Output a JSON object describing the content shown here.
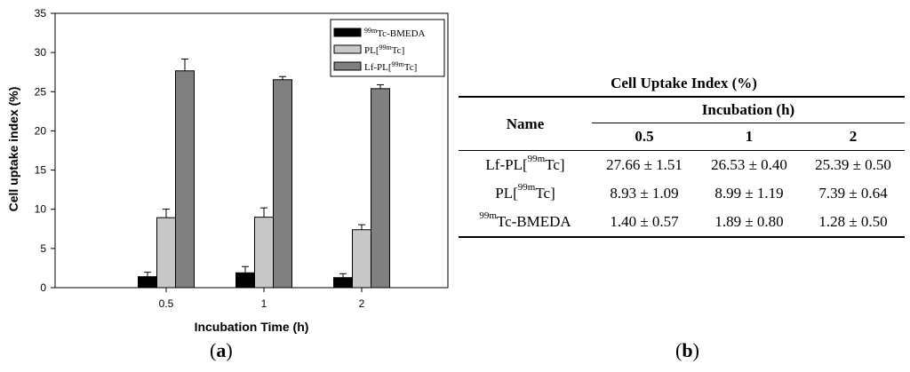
{
  "panel_a_label": "a",
  "panel_b_label": "b",
  "chart_data": {
    "type": "bar",
    "categories": [
      "0.5",
      "1",
      "2"
    ],
    "xlabel": "Incubation Time (h)",
    "ylabel": "Cell uptake index (%)",
    "ylim": [
      0,
      35
    ],
    "yticks": [
      0,
      5,
      10,
      15,
      20,
      25,
      30,
      35
    ],
    "grid": false,
    "legend_position": "top-right",
    "series": [
      {
        "name": "99mTc-BMEDA",
        "legend_sup": "99m",
        "legend_main": "Tc-BMEDA",
        "color": "#000000",
        "values": [
          1.4,
          1.89,
          1.28
        ],
        "errors": [
          0.57,
          0.8,
          0.5
        ]
      },
      {
        "name": "PL[99mTc]",
        "legend_pre": "PL[",
        "legend_sup": "99m",
        "legend_post": "Tc]",
        "color": "#c8c8c8",
        "values": [
          8.93,
          8.99,
          7.39
        ],
        "errors": [
          1.09,
          1.19,
          0.64
        ]
      },
      {
        "name": "Lf-PL[99mTc]",
        "legend_pre": "Lf-PL[",
        "legend_sup": "99m",
        "legend_post": "Tc]",
        "color": "#808080",
        "values": [
          27.66,
          26.53,
          25.39
        ],
        "errors": [
          1.51,
          0.4,
          0.5
        ]
      }
    ]
  },
  "table": {
    "title": "Cell Uptake Index (%)",
    "name_header": "Name",
    "group_header": "Incubation (h)",
    "col_headers": [
      "0.5",
      "1",
      "2"
    ],
    "rows": [
      {
        "pre": "Lf-PL[",
        "sup": "99m",
        "post": "Tc]",
        "values": [
          "27.66 ± 1.51",
          "26.53 ± 0.40",
          "25.39 ± 0.50"
        ]
      },
      {
        "pre": "PL[",
        "sup": "99m",
        "post": "Tc]",
        "values": [
          "8.93 ± 1.09",
          "8.99 ± 1.19",
          "7.39 ± 0.64"
        ]
      },
      {
        "pre": "",
        "sup": "99m",
        "post": "Tc-BMEDA",
        "values": [
          "1.40 ± 0.57",
          "1.89 ± 0.80",
          "1.28 ± 0.50"
        ]
      }
    ]
  }
}
